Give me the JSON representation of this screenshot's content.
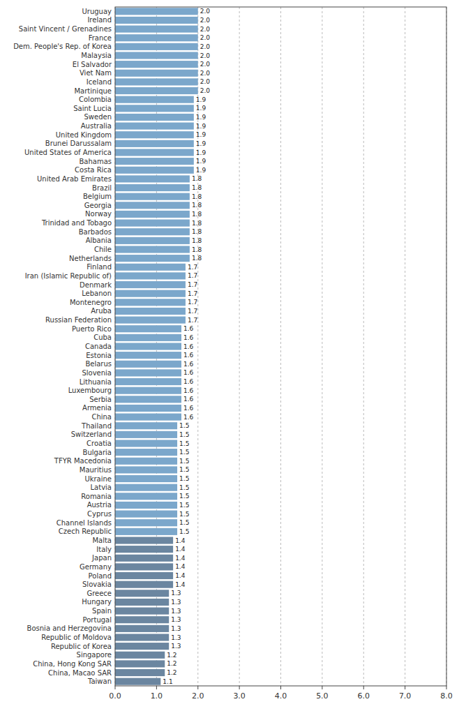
{
  "chart_data": {
    "type": "bar",
    "orientation": "horizontal",
    "categories": [
      "Uruguay",
      "Ireland",
      "Saint Vincent / Grenadines",
      "France",
      "Dem. People's Rep. of Korea",
      "Malaysia",
      "El Salvador",
      "Viet Nam",
      "Iceland",
      "Martinique",
      "Colombia",
      "Saint Lucia",
      "Sweden",
      "Australia",
      "United Kingdom",
      "Brunei Darussalam",
      "United States of America",
      "Bahamas",
      "Costa Rica",
      "United Arab Emirates",
      "Brazil",
      "Belgium",
      "Georgia",
      "Norway",
      "Trinidad and Tobago",
      "Barbados",
      "Albania",
      "Chile",
      "Netherlands",
      "Finland",
      "Iran (Islamic Republic of)",
      "Denmark",
      "Lebanon",
      "Montenegro",
      "Aruba",
      "Russian Federation",
      "Puerto Rico",
      "Cuba",
      "Canada",
      "Estonia",
      "Belarus",
      "Slovenia",
      "Lithuania",
      "Luxembourg",
      "Serbia",
      "Armenia",
      "China",
      "Thailand",
      "Switzerland",
      "Croatia",
      "Bulgaria",
      "TFYR Macedonia",
      "Mauritius",
      "Ukraine",
      "Latvia",
      "Romania",
      "Austria",
      "Cyprus",
      "Channel Islands",
      "Czech Republic",
      "Malta",
      "Italy",
      "Japan",
      "Germany",
      "Poland",
      "Slovakia",
      "Greece",
      "Hungary",
      "Spain",
      "Portugal",
      "Bosnia and Herzegovina",
      "Republic of Moldova",
      "Republic of Korea",
      "Singapore",
      "China, Hong Kong SAR",
      "China, Macao SAR",
      "Taiwan"
    ],
    "values": [
      2.0,
      2.0,
      2.0,
      2.0,
      2.0,
      2.0,
      2.0,
      2.0,
      2.0,
      2.0,
      1.9,
      1.9,
      1.9,
      1.9,
      1.9,
      1.9,
      1.9,
      1.9,
      1.9,
      1.8,
      1.8,
      1.8,
      1.8,
      1.8,
      1.8,
      1.8,
      1.8,
      1.8,
      1.8,
      1.7,
      1.7,
      1.7,
      1.7,
      1.7,
      1.7,
      1.7,
      1.6,
      1.6,
      1.6,
      1.6,
      1.6,
      1.6,
      1.6,
      1.6,
      1.6,
      1.6,
      1.6,
      1.5,
      1.5,
      1.5,
      1.5,
      1.5,
      1.5,
      1.5,
      1.5,
      1.5,
      1.5,
      1.5,
      1.5,
      1.5,
      1.4,
      1.4,
      1.4,
      1.4,
      1.4,
      1.4,
      1.3,
      1.3,
      1.3,
      1.3,
      1.3,
      1.3,
      1.3,
      1.2,
      1.2,
      1.2,
      1.1
    ],
    "value_labels": [
      "2.0",
      "2.0",
      "2.0",
      "2.0",
      "2.0",
      "2.0",
      "2.0",
      "2.0",
      "2.0",
      "2.0",
      "1.9",
      "1.9",
      "1.9",
      "1.9",
      "1.9",
      "1.9",
      "1.9",
      "1.9",
      "1.9",
      "1.8",
      "1.8",
      "1.8",
      "1.8",
      "1.8",
      "1.8",
      "1.8",
      "1.8",
      "1.8",
      "1.8",
      "1.7",
      "1.7",
      "1.7",
      "1.7",
      "1.7",
      "1.7",
      "1.7",
      "1.6",
      "1.6",
      "1.6",
      "1.6",
      "1.6",
      "1.6",
      "1.6",
      "1.6",
      "1.6",
      "1.6",
      "1.6",
      "1.5",
      "1.5",
      "1.5",
      "1.5",
      "1.5",
      "1.5",
      "1.5",
      "1.5",
      "1.5",
      "1.5",
      "1.5",
      "1.5",
      "1.5",
      "1.4",
      "1.4",
      "1.4",
      "1.4",
      "1.4",
      "1.4",
      "1.3",
      "1.3",
      "1.3",
      "1.3",
      "1.3",
      "1.3",
      "1.3",
      "1.2",
      "1.2",
      "1.2",
      "1.1"
    ],
    "colors": [
      "#7BA7CB",
      "#7BA7CB",
      "#7BA7CB",
      "#7BA7CB",
      "#7BA7CB",
      "#7BA7CB",
      "#7BA7CB",
      "#7BA7CB",
      "#7BA7CB",
      "#7BA7CB",
      "#7BA7CB",
      "#7BA7CB",
      "#7BA7CB",
      "#7BA7CB",
      "#7BA7CB",
      "#7BA7CB",
      "#7BA7CB",
      "#7BA7CB",
      "#7BA7CB",
      "#7BA7CB",
      "#7BA7CB",
      "#7BA7CB",
      "#7BA7CB",
      "#7BA7CB",
      "#7BA7CB",
      "#7BA7CB",
      "#7BA7CB",
      "#7BA7CB",
      "#7BA7CB",
      "#7BA7CB",
      "#7BA7CB",
      "#7BA7CB",
      "#7BA7CB",
      "#7BA7CB",
      "#7BA7CB",
      "#7BA7CB",
      "#7BA7CB",
      "#7BA7CB",
      "#7BA7CB",
      "#7BA7CB",
      "#7BA7CB",
      "#7BA7CB",
      "#7BA7CB",
      "#7BA7CB",
      "#7BA7CB",
      "#7BA7CB",
      "#7BA7CB",
      "#7BA7CB",
      "#7BA7CB",
      "#7BA7CB",
      "#7BA7CB",
      "#7BA7CB",
      "#7BA7CB",
      "#7BA7CB",
      "#7BA7CB",
      "#7BA7CB",
      "#7BA7CB",
      "#7BA7CB",
      "#7BA7CB",
      "#7BA7CB",
      "#6B86A0",
      "#6B86A0",
      "#6B86A0",
      "#6B86A0",
      "#6B86A0",
      "#6B86A0",
      "#6B86A0",
      "#6B86A0",
      "#6B86A0",
      "#6B86A0",
      "#6B86A0",
      "#6B86A0",
      "#6B86A0",
      "#6B86A0",
      "#6B86A0",
      "#6B86A0",
      "#6B86A0"
    ],
    "xlim": [
      0,
      8.0
    ],
    "xticks": [
      {
        "value": 0.0,
        "label": "0.0"
      },
      {
        "value": 1.0,
        "label": "1.0"
      },
      {
        "value": 2.0,
        "label": "2.0"
      },
      {
        "value": 3.0,
        "label": "3.0"
      },
      {
        "value": 4.0,
        "label": "4.0"
      },
      {
        "value": 5.0,
        "label": "5.0"
      },
      {
        "value": 6.0,
        "label": "6.0"
      },
      {
        "value": 7.0,
        "label": "7.0"
      },
      {
        "value": 8.0,
        "label": "8.0"
      }
    ],
    "grid": true,
    "data_labels": true
  }
}
